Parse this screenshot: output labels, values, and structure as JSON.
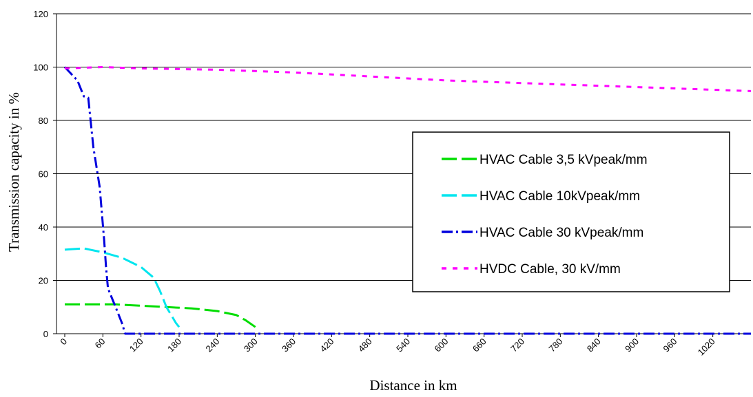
{
  "chart_data": {
    "type": "line",
    "xlabel": "Distance in km",
    "ylabel": "Transmission capacity in %",
    "xlim": [
      0,
      1080
    ],
    "ylim": [
      0,
      120
    ],
    "y_ticks": [
      0,
      20,
      40,
      60,
      80,
      100,
      120
    ],
    "x_tick_labels": [
      "0",
      "60",
      "120",
      "180",
      "240",
      "300",
      "360",
      "420",
      "480",
      "540",
      "600",
      "660",
      "720",
      "780",
      "840",
      "900",
      "960",
      "1020"
    ],
    "x_tick_values": [
      0,
      60,
      120,
      180,
      240,
      300,
      360,
      420,
      480,
      540,
      600,
      660,
      720,
      780,
      840,
      900,
      960,
      1020
    ],
    "grid": "horizontal",
    "legend_position": "right",
    "series": [
      {
        "name": "HVAC Cable 3,5 kVpeak/mm",
        "color": "#00dd00",
        "dash": "long-dash",
        "points": [
          [
            0,
            11
          ],
          [
            40,
            11
          ],
          [
            80,
            11
          ],
          [
            120,
            10.5
          ],
          [
            160,
            10
          ],
          [
            200,
            9.5
          ],
          [
            240,
            8.5
          ],
          [
            270,
            7
          ],
          [
            285,
            5
          ],
          [
            300,
            2.5
          ]
        ]
      },
      {
        "name": "HVAC Cable 10kVpeak/mm",
        "color": "#00e5ee",
        "dash": "long-dash",
        "points": [
          [
            0,
            31.5
          ],
          [
            30,
            32
          ],
          [
            60,
            30.5
          ],
          [
            90,
            28.5
          ],
          [
            120,
            25
          ],
          [
            140,
            21
          ],
          [
            150,
            16
          ],
          [
            160,
            10
          ],
          [
            175,
            4
          ],
          [
            180,
            2.5
          ]
        ]
      },
      {
        "name": "HVAC Cable 30 kVpeak/mm",
        "color": "#0000dd",
        "dash": "dash-dot",
        "points": [
          [
            0,
            100
          ],
          [
            20,
            95
          ],
          [
            30,
            89
          ],
          [
            37,
            88.5
          ],
          [
            45,
            70
          ],
          [
            55,
            55
          ],
          [
            62,
            35
          ],
          [
            65,
            25
          ],
          [
            68,
            17
          ],
          [
            80,
            10
          ],
          [
            90,
            4
          ],
          [
            95,
            0
          ],
          [
            1080,
            0
          ]
        ]
      },
      {
        "name": "HVDC Cable, 30 kV/mm",
        "color": "#ff00ff",
        "dash": "dotted",
        "points": [
          [
            0,
            99.5
          ],
          [
            60,
            100
          ],
          [
            120,
            99.5
          ],
          [
            240,
            99
          ],
          [
            360,
            98
          ],
          [
            480,
            96.5
          ],
          [
            600,
            95
          ],
          [
            720,
            94
          ],
          [
            840,
            93
          ],
          [
            960,
            92
          ],
          [
            1080,
            91
          ]
        ]
      }
    ]
  }
}
